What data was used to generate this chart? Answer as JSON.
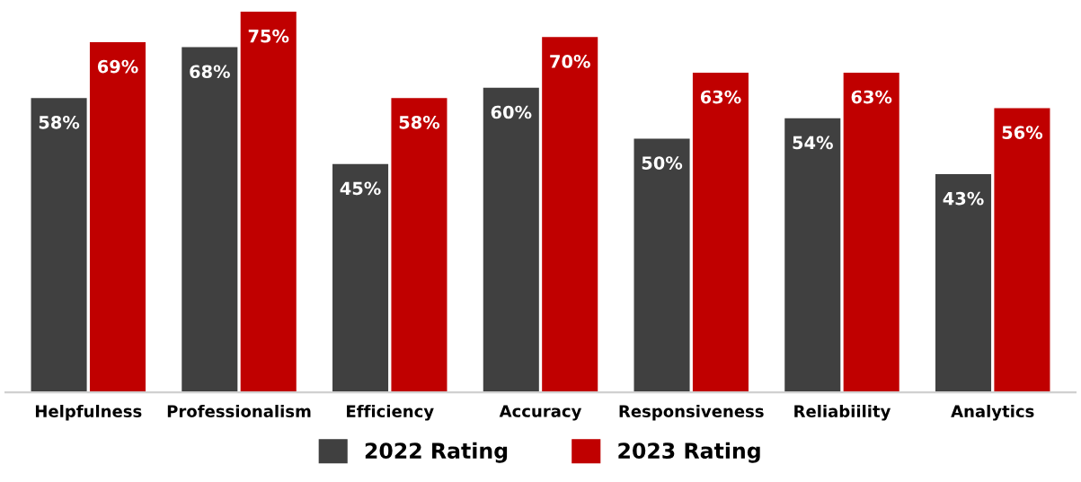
{
  "chart_data": {
    "type": "bar",
    "categories": [
      "Helpfulness",
      "Professionalism",
      "Efficiency",
      "Accuracy",
      "Responsiveness",
      "Reliabiility",
      "Analytics"
    ],
    "series": [
      {
        "name": "2022 Rating",
        "color": "#404040",
        "values": [
          58,
          68,
          45,
          60,
          50,
          54,
          43
        ],
        "value_labels": [
          "58%",
          "68%",
          "45%",
          "60%",
          "50%",
          "54%",
          "43%"
        ]
      },
      {
        "name": "2023 Rating",
        "color": "#c00000",
        "values": [
          69,
          75,
          58,
          70,
          63,
          63,
          56
        ],
        "value_labels": [
          "69%",
          "75%",
          "58%",
          "70%",
          "63%",
          "63%",
          "56%"
        ]
      }
    ],
    "legend": "bottom"
  }
}
